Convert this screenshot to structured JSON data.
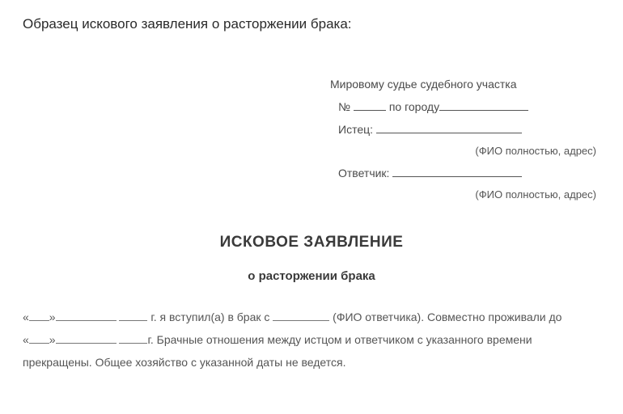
{
  "heading": "Образец искового заявления о расторжении брака:",
  "addressee": {
    "line1": "Мировому судье судебного участка",
    "no_label": "№",
    "city_label": "по городу",
    "plaintiff_label": "Истец:",
    "hint_plaintiff": "(ФИО полностью, адрес)",
    "defendant_label": "Ответчик:",
    "hint_defendant": "(ФИО полностью, адрес)"
  },
  "title": "ИСКОВОЕ ЗАЯВЛЕНИЕ",
  "subtitle": "о расторжении брака",
  "body": {
    "seg1_prefix": "«",
    "seg1_mid": "»",
    "seg1_year": " г. я вступил(а) в брак с ",
    "seg1_tail": " (ФИО ответчика). Совместно проживали до",
    "seg2_prefix": "«",
    "seg2_mid": "»",
    "seg2_year": "г. Брачные отношения между истцом и ответчиком с указанного времени",
    "seg3": "прекращены. Общее хозяйство с указанной даты не ведется."
  },
  "style": {
    "bg": "#ffffff",
    "text_color": "#4a4a4a",
    "heading_color": "#2a2a2a",
    "underline_color": "#555555",
    "font_body": 14,
    "font_heading": 17,
    "font_title": 19
  }
}
